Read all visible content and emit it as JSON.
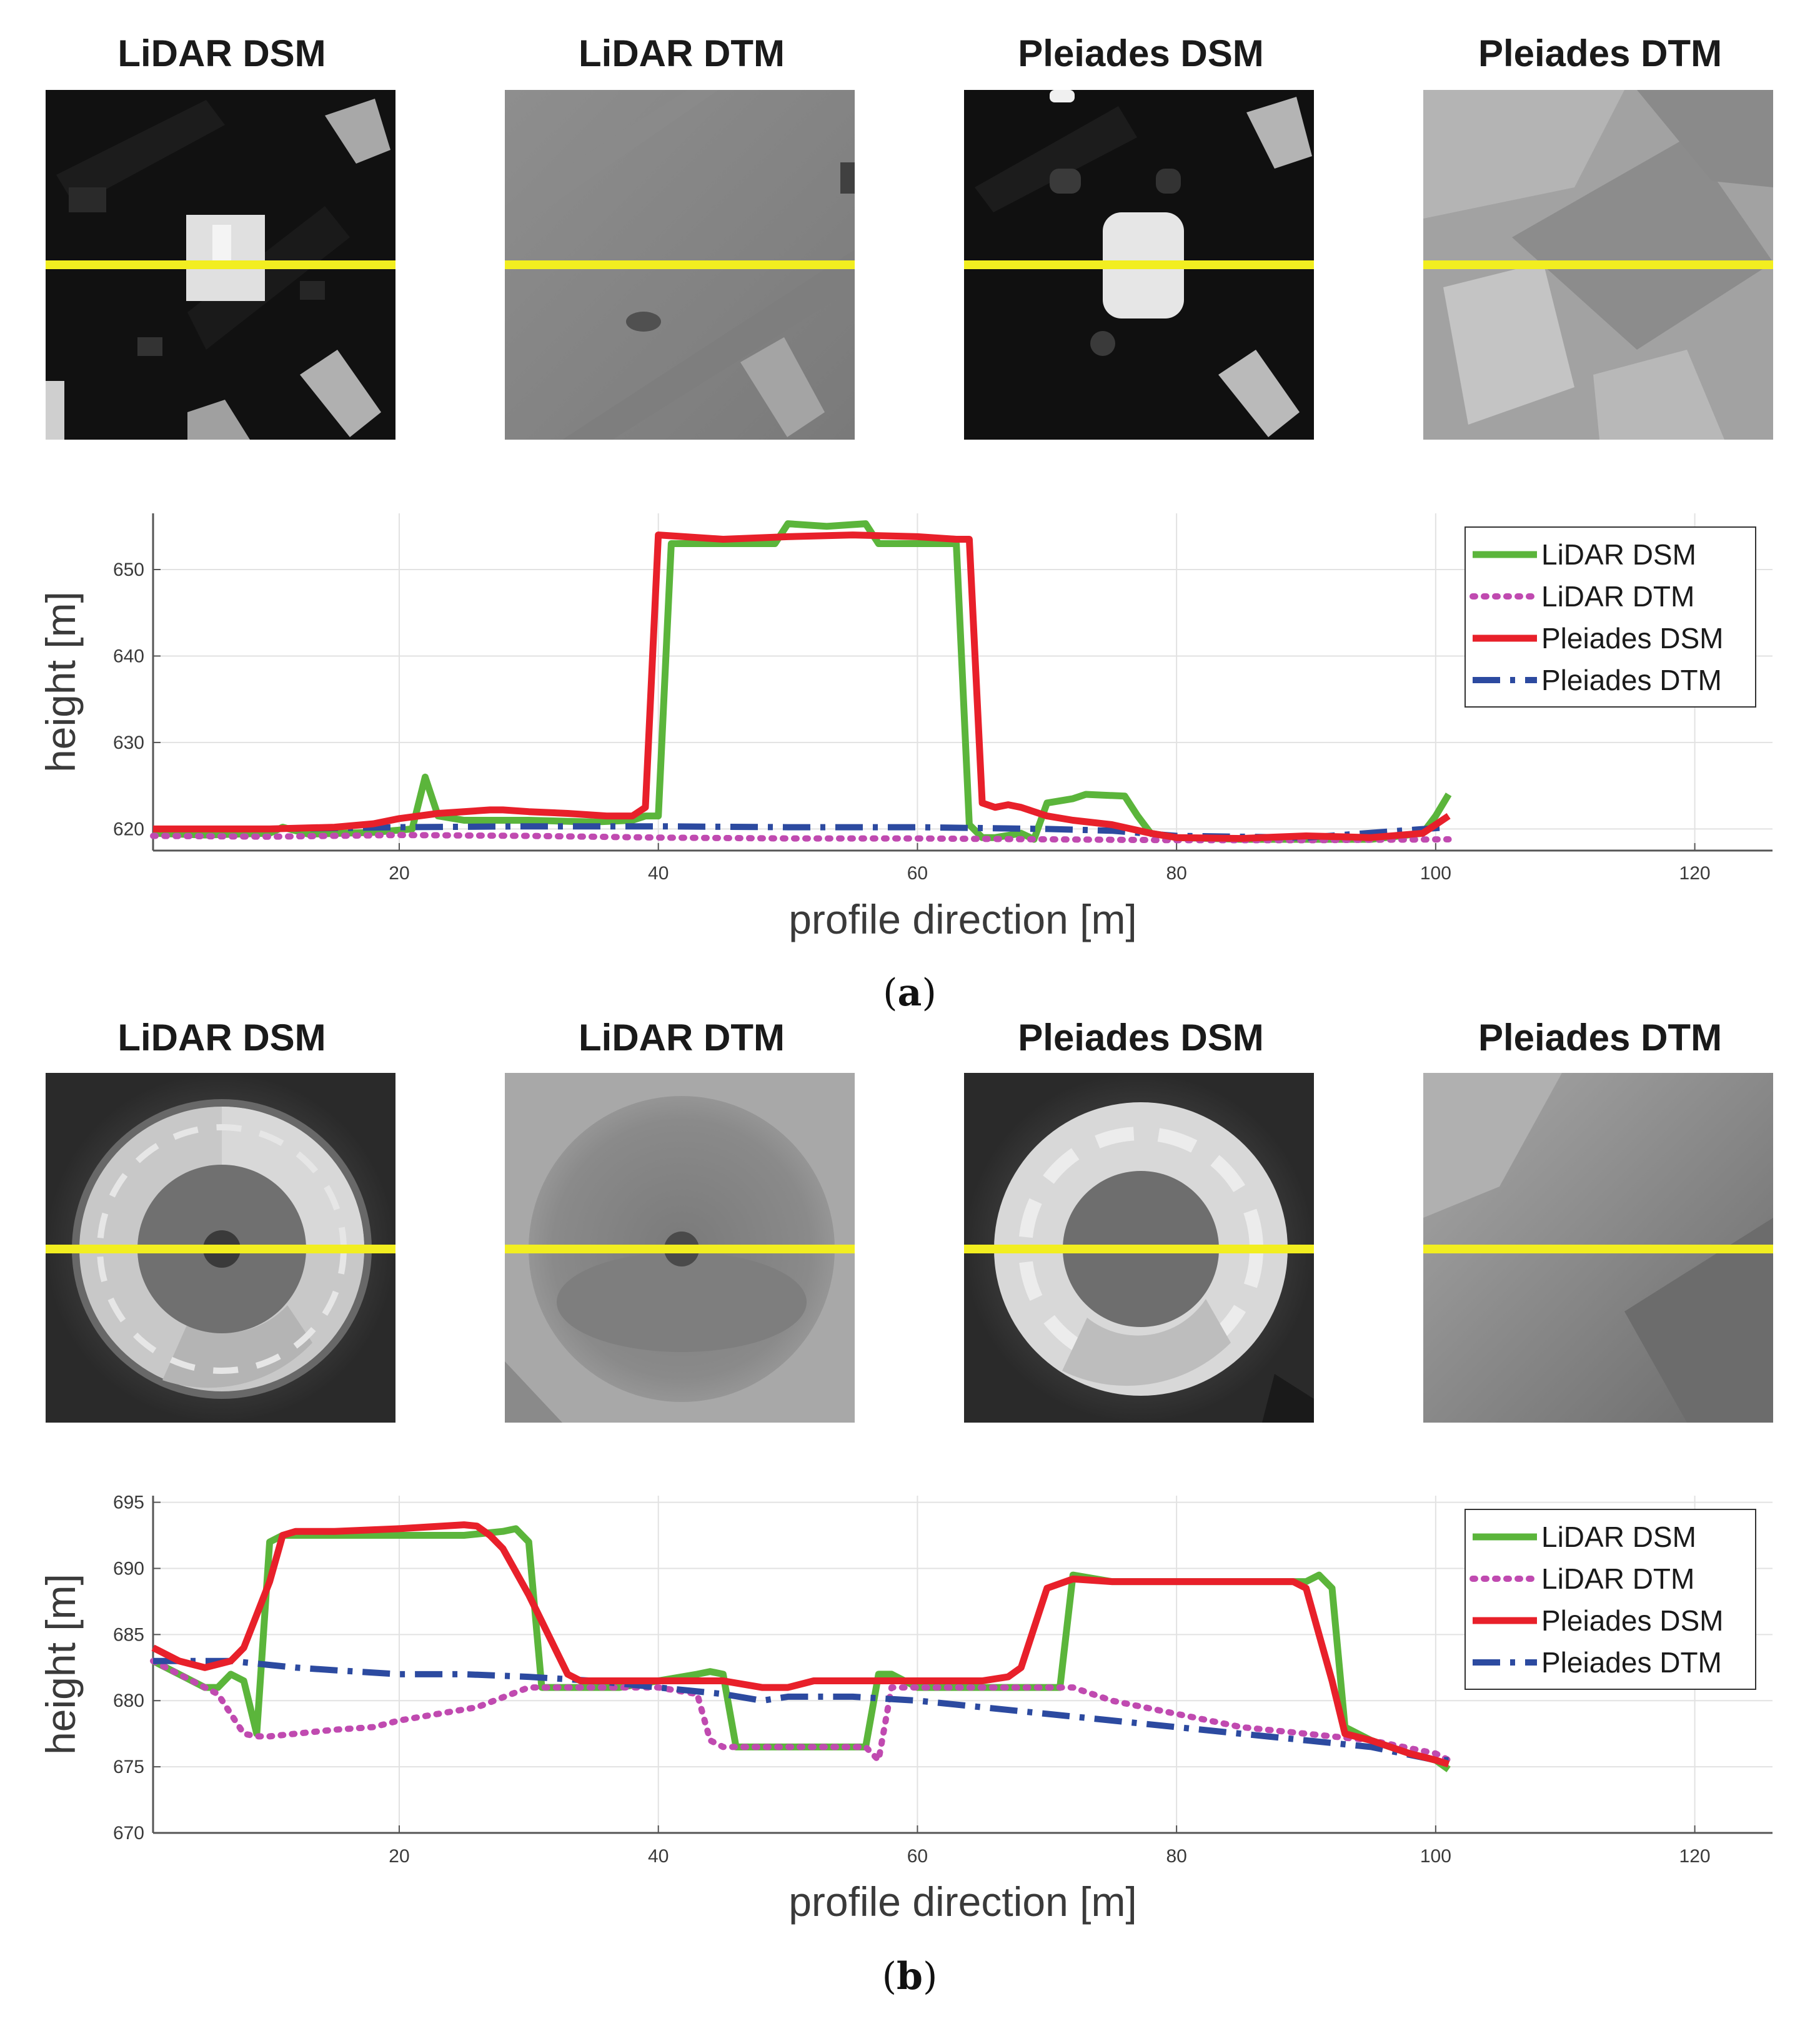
{
  "figure": {
    "panels": [
      {
        "id": "a",
        "caption_open": "(",
        "caption_letter": "a",
        "caption_close": ")",
        "images": [
          {
            "title": "LiDAR DSM",
            "kind": "dsm_lidar_a"
          },
          {
            "title": "LiDAR DTM",
            "kind": "dtm_lidar_a"
          },
          {
            "title": "Pleiades DSM",
            "kind": "dsm_pleiades_a"
          },
          {
            "title": "Pleiades DTM",
            "kind": "dtm_pleiades_a"
          }
        ]
      },
      {
        "id": "b",
        "caption_open": "(",
        "caption_letter": "b",
        "caption_close": ")",
        "images": [
          {
            "title": "LiDAR DSM",
            "kind": "dsm_lidar_b"
          },
          {
            "title": "LiDAR DTM",
            "kind": "dtm_lidar_b"
          },
          {
            "title": "Pleiades DSM",
            "kind": "dsm_pleiades_b"
          },
          {
            "title": "Pleiades DTM",
            "kind": "dtm_pleiades_b"
          }
        ]
      }
    ],
    "colors": {
      "lidar_dsm": "#5bb53b",
      "lidar_dtm": "#c04ab0",
      "pleiades_dsm": "#e8202a",
      "pleiades_dtm": "#2c4aa0",
      "profile_line": "#f2ee20"
    }
  },
  "chart_data": [
    {
      "type": "line",
      "panel": "a",
      "xlabel": "profile direction [m]",
      "ylabel": "height [m]",
      "xlim": [
        1,
        126
      ],
      "ylim": [
        617.5,
        656.5
      ],
      "xticks": [
        20,
        40,
        60,
        80,
        100,
        120
      ],
      "yticks": [
        620,
        630,
        640,
        650
      ],
      "grid": true,
      "legend_position": "top-right",
      "series": [
        {
          "name": "LiDAR DSM",
          "style": "solid",
          "color": "#5bb53b",
          "x": [
            1,
            5,
            10,
            11,
            12,
            13,
            18,
            21,
            22,
            23,
            25,
            30,
            35,
            38,
            39,
            40,
            41,
            45,
            49,
            50,
            53,
            55,
            56,
            57,
            60,
            63,
            64,
            65,
            66,
            68,
            69,
            70,
            72,
            73,
            76,
            77,
            78,
            80,
            85,
            90,
            95,
            99,
            100,
            101
          ],
          "y": [
            619.5,
            619.3,
            619.5,
            620.2,
            619.8,
            619.4,
            619.6,
            620.0,
            626.0,
            621.5,
            621.0,
            621.0,
            620.8,
            621.0,
            621.5,
            621.5,
            653.0,
            653.0,
            653.0,
            655.3,
            655.0,
            655.2,
            655.3,
            653.0,
            653.0,
            653.0,
            620.5,
            619.0,
            619.0,
            619.5,
            618.8,
            623.0,
            623.5,
            624.0,
            623.8,
            621.5,
            619.5,
            619.0,
            618.8,
            618.8,
            618.8,
            619.5,
            621.5,
            624.0
          ]
        },
        {
          "name": "LiDAR DTM",
          "style": "dotted",
          "color": "#c04ab0",
          "x": [
            1,
            10,
            20,
            30,
            40,
            50,
            60,
            70,
            80,
            90,
            101
          ],
          "y": [
            619.2,
            619.1,
            619.3,
            619.2,
            619.0,
            618.9,
            618.9,
            618.8,
            618.7,
            618.7,
            618.8
          ]
        },
        {
          "name": "Pleiades DSM",
          "style": "solid",
          "color": "#e8202a",
          "x": [
            1,
            5,
            10,
            15,
            18,
            20,
            23,
            25,
            27,
            28,
            30,
            33,
            36,
            38,
            39,
            40,
            45,
            50,
            55,
            60,
            63,
            64,
            65,
            66,
            67,
            68,
            69,
            70,
            72,
            75,
            78,
            80,
            85,
            90,
            95,
            99,
            100,
            101
          ],
          "y": [
            620.0,
            620.0,
            620.0,
            620.2,
            620.6,
            621.2,
            621.8,
            622.0,
            622.2,
            622.2,
            622.0,
            621.8,
            621.5,
            621.5,
            622.5,
            654.0,
            653.5,
            653.8,
            654.0,
            653.8,
            653.5,
            653.5,
            623.0,
            622.5,
            622.8,
            622.5,
            622.0,
            621.5,
            621.0,
            620.5,
            619.5,
            619.0,
            618.9,
            619.2,
            619.0,
            619.5,
            620.5,
            621.5
          ]
        },
        {
          "name": "Pleiades DTM",
          "style": "dashdot",
          "color": "#2c4aa0",
          "x": [
            1,
            10,
            20,
            30,
            40,
            50,
            60,
            70,
            75,
            80,
            90,
            101
          ],
          "y": [
            620.0,
            620.0,
            620.2,
            620.3,
            620.3,
            620.2,
            620.2,
            620.0,
            619.8,
            619.2,
            619.0,
            620.2
          ]
        }
      ]
    },
    {
      "type": "line",
      "panel": "b",
      "xlabel": "profile direction [m]",
      "ylabel": "height [m]",
      "xlim": [
        1,
        126
      ],
      "ylim": [
        670,
        695.5
      ],
      "xticks": [
        20,
        40,
        60,
        80,
        100,
        120
      ],
      "yticks": [
        670,
        675,
        680,
        685,
        690,
        695
      ],
      "grid": true,
      "legend_position": "top-right",
      "series": [
        {
          "name": "LiDAR DSM",
          "style": "solid",
          "color": "#5bb53b",
          "x": [
            1,
            3,
            5,
            6,
            7,
            8,
            9,
            10,
            11,
            12,
            15,
            20,
            25,
            28,
            29,
            30,
            31,
            33,
            37,
            40,
            43,
            44,
            45,
            46,
            48,
            50,
            53,
            56,
            57,
            58,
            60,
            65,
            68,
            70,
            71,
            72,
            75,
            80,
            85,
            90,
            91,
            92,
            93,
            95,
            98,
            100,
            101
          ],
          "y": [
            683.0,
            682.0,
            681.0,
            681.0,
            682.0,
            681.5,
            677.5,
            692.0,
            692.5,
            692.5,
            692.5,
            692.5,
            692.5,
            692.8,
            693.0,
            692.0,
            681.0,
            681.0,
            681.0,
            681.5,
            682.0,
            682.2,
            682.0,
            676.5,
            676.5,
            676.5,
            676.5,
            676.5,
            682.0,
            682.0,
            681.0,
            681.0,
            681.0,
            681.0,
            681.0,
            689.5,
            689.0,
            689.0,
            689.0,
            689.0,
            689.5,
            688.5,
            678.0,
            677.0,
            676.0,
            675.5,
            674.8
          ]
        },
        {
          "name": "LiDAR DTM",
          "style": "dotted",
          "color": "#c04ab0",
          "x": [
            1,
            3,
            5,
            6,
            7,
            8,
            9,
            10,
            12,
            15,
            18,
            20,
            23,
            26,
            30,
            33,
            40,
            43,
            44,
            45,
            46,
            50,
            56,
            57,
            58,
            65,
            70,
            72,
            75,
            80,
            85,
            90,
            95,
            100,
            101
          ],
          "y": [
            683.0,
            682.0,
            681.0,
            680.5,
            679.0,
            677.5,
            677.3,
            677.3,
            677.5,
            677.8,
            678.0,
            678.5,
            679.0,
            679.5,
            681.0,
            681.0,
            681.0,
            680.5,
            677.0,
            676.5,
            676.5,
            676.5,
            676.5,
            675.5,
            681.0,
            681.0,
            681.0,
            681.0,
            680.0,
            679.0,
            678.0,
            677.5,
            677.0,
            676.0,
            675.5
          ]
        },
        {
          "name": "Pleiades DSM",
          "style": "solid",
          "color": "#e8202a",
          "x": [
            1,
            3,
            5,
            7,
            8,
            9,
            10,
            11,
            12,
            15,
            20,
            25,
            26,
            27,
            28,
            30,
            31,
            32,
            33,
            34,
            35,
            40,
            45,
            48,
            50,
            52,
            55,
            60,
            65,
            67,
            68,
            69,
            70,
            72,
            75,
            80,
            85,
            89,
            90,
            91,
            92,
            93,
            95,
            98,
            100,
            101
          ],
          "y": [
            684.0,
            683.0,
            682.5,
            683.0,
            684.0,
            686.5,
            689.0,
            692.5,
            692.8,
            692.8,
            693.0,
            693.3,
            693.2,
            692.5,
            691.5,
            688.0,
            686.0,
            684.0,
            682.0,
            681.5,
            681.5,
            681.5,
            681.5,
            681.0,
            681.0,
            681.5,
            681.5,
            681.5,
            681.5,
            681.8,
            682.5,
            685.5,
            688.5,
            689.2,
            689.0,
            689.0,
            689.0,
            689.0,
            688.5,
            685.0,
            681.5,
            677.5,
            677.0,
            676.0,
            675.5,
            675.2
          ]
        },
        {
          "name": "Pleiades DTM",
          "style": "dashdot",
          "color": "#2c4aa0",
          "x": [
            1,
            3,
            5,
            7,
            9,
            12,
            15,
            20,
            25,
            30,
            35,
            40,
            45,
            48,
            50,
            55,
            60,
            65,
            70,
            75,
            80,
            85,
            90,
            95,
            100,
            101
          ],
          "y": [
            683.0,
            683.0,
            683.0,
            683.0,
            682.8,
            682.5,
            682.3,
            682.0,
            682.0,
            681.8,
            681.5,
            681.0,
            680.5,
            680.0,
            680.3,
            680.3,
            680.0,
            679.5,
            679.0,
            678.5,
            678.0,
            677.5,
            677.0,
            676.5,
            675.5,
            675.5
          ]
        }
      ]
    }
  ]
}
